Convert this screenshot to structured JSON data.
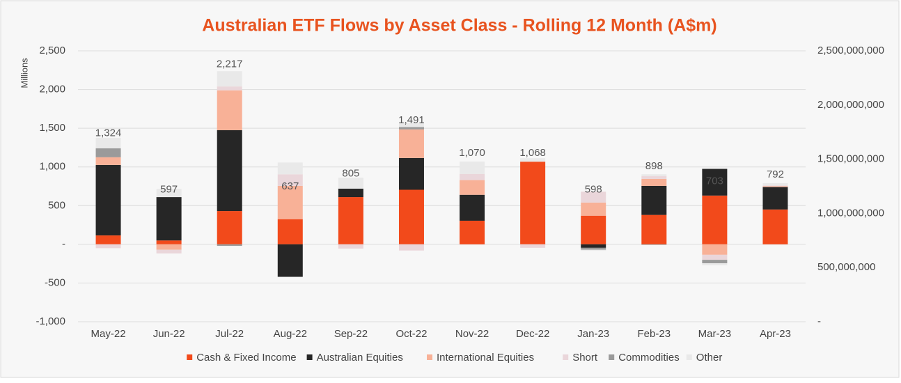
{
  "chart_data": {
    "type": "stacked_bar",
    "title": "Australian ETF Flows by Asset Class - Rolling 12 Month (A$m)",
    "y_axis_label": "Millions",
    "categories": [
      "May-22",
      "Jun-22",
      "Jul-22",
      "Aug-22",
      "Sep-22",
      "Oct-22",
      "Nov-22",
      "Dec-22",
      "Jan-23",
      "Feb-23",
      "Mar-23",
      "Apr-23"
    ],
    "series": [
      {
        "name": "Cash & Fixed Income",
        "color": "#f24a1b",
        "values": [
          115,
          50,
          430,
          325,
          610,
          705,
          305,
          1068,
          370,
          380,
          630,
          450
        ]
      },
      {
        "name": "Australian Equities",
        "color": "#262626",
        "values": [
          910,
          560,
          1045,
          -420,
          110,
          410,
          335,
          0,
          -45,
          375,
          345,
          290
        ]
      },
      {
        "name": "International Equities",
        "color": "#f8b197",
        "values": [
          100,
          -70,
          515,
          430,
          0,
          370,
          190,
          0,
          170,
          90,
          -135,
          10
        ]
      },
      {
        "name": "Short",
        "color": "#ead6da",
        "values": [
          -50,
          -48,
          50,
          150,
          -55,
          -80,
          80,
          -45,
          140,
          35,
          -65,
          10
        ]
      },
      {
        "name": "Commodities",
        "color": "#9a9a9a",
        "values": [
          115,
          0,
          -20,
          0,
          0,
          30,
          0,
          0,
          -25,
          -7,
          -45,
          0
        ]
      },
      {
        "name": "Other",
        "color": "#e9e9e9",
        "values": [
          135,
          105,
          197,
          152,
          140,
          56,
          160,
          45,
          -12,
          25,
          -27,
          32
        ]
      }
    ],
    "totals": [
      1324,
      597,
      2217,
      637,
      805,
      1491,
      1070,
      1068,
      598,
      898,
      703,
      792
    ],
    "total_labels": [
      "1,324",
      "597",
      "2,217",
      "637",
      "805",
      "1,491",
      "1,070",
      "1,068",
      "598",
      "898",
      "703",
      "792"
    ],
    "ylim": [
      -1000,
      2500
    ],
    "yticks": [
      {
        "value": -1000,
        "label": "-1,000"
      },
      -500,
      {
        "value": 0,
        "label": "-"
      },
      500,
      {
        "value": 1000,
        "label": "1,000"
      },
      {
        "value": 1500,
        "label": "1,500"
      },
      {
        "value": 2000,
        "label": "2,000"
      },
      {
        "value": 2500,
        "label": "2,500"
      }
    ],
    "y2lim": [
      0,
      2500000000
    ],
    "y2ticks": [
      {
        "value": 0,
        "label": "-"
      },
      {
        "value": 500000000,
        "label": "500,000,000"
      },
      {
        "value": 1000000000,
        "label": "1,000,000,000"
      },
      {
        "value": 1500000000,
        "label": "1,500,000,000"
      },
      {
        "value": 2000000000,
        "label": "2,000,000,000"
      },
      {
        "value": 2500000000,
        "label": "2,500,000,000"
      }
    ],
    "grid": true,
    "legend": "bottom"
  }
}
